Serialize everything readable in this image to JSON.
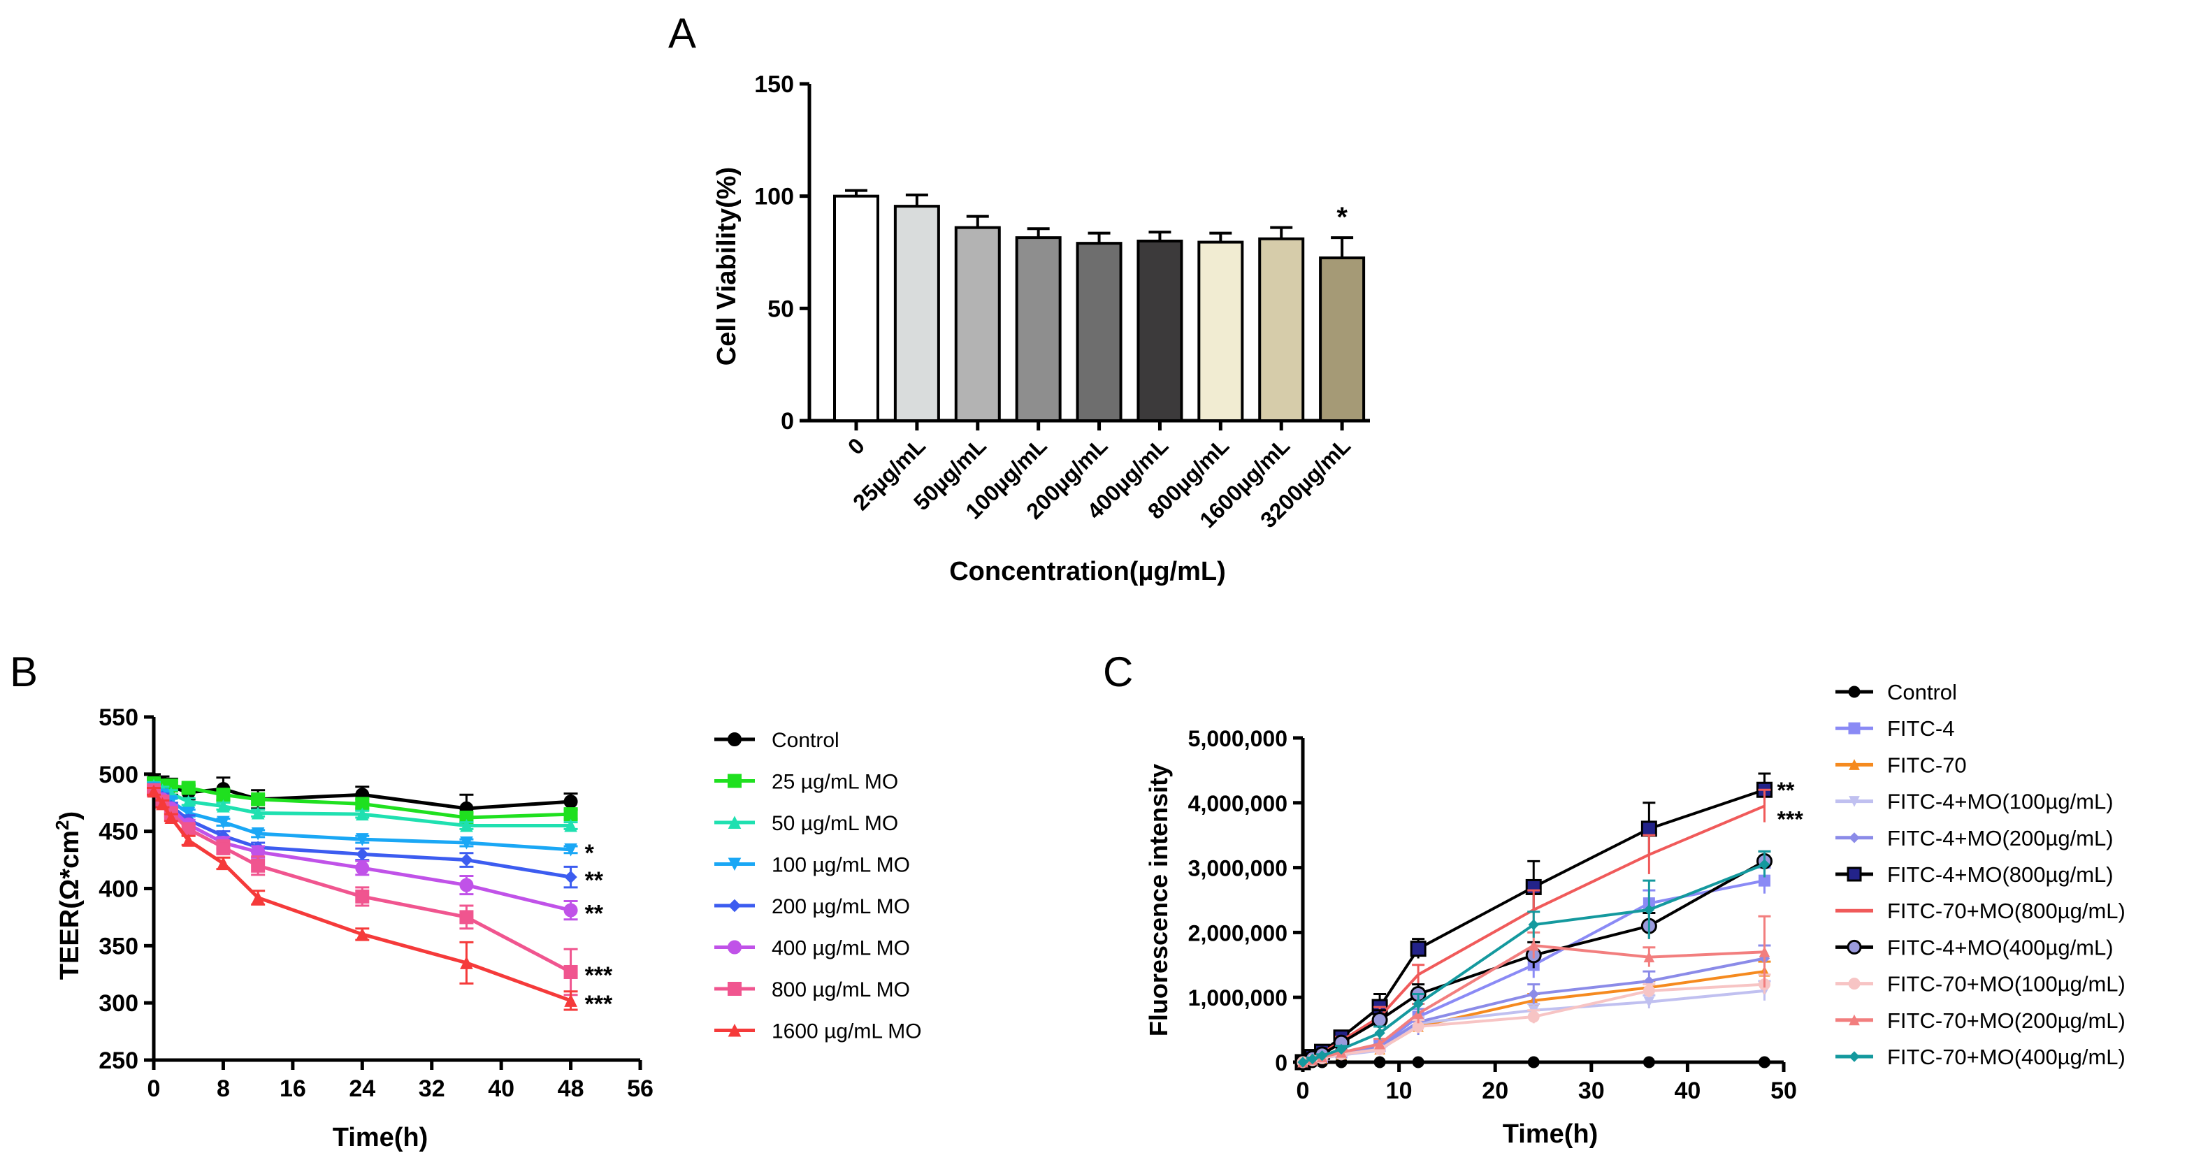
{
  "chart_data": [
    {
      "panel": "A",
      "type": "bar",
      "title": "",
      "xlabel": "Concentration(µg/mL)",
      "ylabel": "Cell Viability(%)",
      "ylim": [
        0,
        150
      ],
      "yticks": [
        0,
        50,
        100,
        150
      ],
      "categories": [
        "0",
        "25µg/mL",
        "50µg/mL",
        "100µg/mL",
        "200µg/mL",
        "400µg/mL",
        "800µg/mL",
        "1600µg/mL",
        "3200µg/mL"
      ],
      "values": [
        100,
        95.5,
        86,
        81.5,
        79,
        80,
        79.5,
        81,
        72.5
      ],
      "errors": [
        2.5,
        5,
        5,
        4,
        4.5,
        4,
        4,
        5,
        9
      ],
      "colors": [
        "#ffffff",
        "#d9dcdc",
        "#b3b3b3",
        "#8e8e8e",
        "#6e6e6e",
        "#3c3a3b",
        "#f1ecd2",
        "#d6ccaa",
        "#a59a76"
      ],
      "annotations": [
        {
          "category": "3200µg/mL",
          "text": "*"
        }
      ]
    },
    {
      "panel": "B",
      "type": "line",
      "xlabel": "Time(h)",
      "ylabel_main": "TEER(Ω*cm",
      "ylabel_sup": "2",
      "ylabel_end": ")",
      "xlim": [
        0,
        56
      ],
      "ylim": [
        250,
        550
      ],
      "xticks": [
        0,
        8,
        16,
        24,
        32,
        40,
        48,
        56
      ],
      "yticks": [
        250,
        300,
        350,
        400,
        450,
        500,
        550
      ],
      "x": [
        0,
        1,
        2,
        4,
        8,
        12,
        24,
        36,
        48
      ],
      "series": [
        {
          "name": "Control",
          "color": "#000000",
          "marker": "circle",
          "values": [
            495,
            492,
            489,
            484,
            487,
            478,
            482,
            470,
            476
          ],
          "errors": [
            5,
            6,
            7,
            6,
            10,
            8,
            7,
            12,
            7
          ]
        },
        {
          "name": "25 µg/mL MO",
          "color": "#1fe01f",
          "marker": "square",
          "values": [
            492,
            490,
            490,
            488,
            482,
            478,
            474,
            462,
            465
          ],
          "errors": [
            3,
            3,
            3,
            3,
            4,
            4,
            4,
            4,
            4
          ]
        },
        {
          "name": "50 µg/mL MO",
          "color": "#1fe0b0",
          "marker": "triangle-up",
          "values": [
            490,
            486,
            483,
            476,
            472,
            466,
            465,
            455,
            455
          ],
          "errors": [
            3,
            3,
            3,
            3,
            3,
            3,
            3,
            3,
            3
          ]
        },
        {
          "name": "100 µg/mL MO",
          "color": "#1aa7f5",
          "marker": "triangle-down",
          "values": [
            488,
            482,
            476,
            466,
            458,
            448,
            443,
            440,
            434
          ],
          "errors": [
            3,
            3,
            3,
            3,
            3,
            3,
            3,
            3,
            3
          ]
        },
        {
          "name": "200 µg/mL MO",
          "color": "#3c5cf0",
          "marker": "diamond",
          "values": [
            487,
            480,
            472,
            460,
            446,
            436,
            430,
            425,
            410
          ],
          "errors": [
            3,
            3,
            3,
            4,
            4,
            4,
            5,
            6,
            9
          ]
        },
        {
          "name": "400 µg/mL MO",
          "color": "#c052e8",
          "marker": "circle",
          "values": [
            486,
            478,
            470,
            456,
            440,
            432,
            418,
            403,
            381
          ],
          "errors": [
            3,
            3,
            3,
            4,
            5,
            5,
            6,
            8,
            8
          ]
        },
        {
          "name": "800 µg/mL MO",
          "color": "#f0558f",
          "marker": "square",
          "values": [
            486,
            476,
            466,
            452,
            436,
            420,
            393,
            375,
            327
          ],
          "errors": [
            3,
            3,
            3,
            4,
            6,
            8,
            8,
            10,
            20
          ]
        },
        {
          "name": "1600 µg/mL MO",
          "color": "#f53a3a",
          "marker": "triangle-up",
          "values": [
            485,
            474,
            462,
            442,
            422,
            392,
            360,
            335,
            302
          ],
          "errors": [
            3,
            3,
            3,
            4,
            5,
            6,
            5,
            18,
            8
          ]
        }
      ],
      "annotations": [
        {
          "series": "100 µg/mL MO",
          "text": "*"
        },
        {
          "series": "200 µg/mL MO",
          "text": "**"
        },
        {
          "series": "400 µg/mL MO",
          "text": "**"
        },
        {
          "series": "800 µg/mL MO",
          "text": "***"
        },
        {
          "series": "1600 µg/mL MO",
          "text": "***"
        }
      ]
    },
    {
      "panel": "C",
      "type": "line",
      "xlabel": "Time(h)",
      "ylabel": "Fluorescence intensity",
      "xlim": [
        0,
        50
      ],
      "ylim": [
        0,
        5000000
      ],
      "xticks": [
        0,
        10,
        20,
        30,
        40,
        50
      ],
      "yticks": [
        0,
        1000000,
        2000000,
        3000000,
        4000000,
        5000000
      ],
      "ytick_labels": [
        "0",
        "1,000,000",
        "2,000,000",
        "3,000,000",
        "4,000,000",
        "5,000,000"
      ],
      "x": [
        0,
        1,
        2,
        4,
        8,
        12,
        24,
        36,
        48
      ],
      "series": [
        {
          "name": "Control",
          "color": "#000000",
          "marker": "circle",
          "values": [
            0,
            0,
            0,
            0,
            0,
            0,
            0,
            0,
            0
          ],
          "errors": [
            0,
            0,
            0,
            0,
            0,
            0,
            0,
            0,
            0
          ]
        },
        {
          "name": "FITC-4",
          "color": "#8a8af5",
          "marker": "square",
          "values": [
            0,
            40000,
            80000,
            150000,
            250000,
            700000,
            1500000,
            2450000,
            2800000
          ],
          "errors": [
            0,
            20000,
            20000,
            40000,
            80000,
            200000,
            200000,
            200000,
            200000
          ]
        },
        {
          "name": "FITC-70",
          "color": "#f58a1f",
          "marker": "triangle-up",
          "values": [
            0,
            30000,
            60000,
            120000,
            200000,
            550000,
            950000,
            1150000,
            1400000
          ],
          "errors": [
            0,
            20000,
            20000,
            30000,
            50000,
            100000,
            100000,
            100000,
            150000
          ]
        },
        {
          "name": "FITC-4+MO(100µg/mL)",
          "color": "#c0c0f0",
          "marker": "triangle-down",
          "values": [
            0,
            30000,
            60000,
            110000,
            180000,
            600000,
            800000,
            930000,
            1100000
          ],
          "errors": [
            0,
            20000,
            20000,
            30000,
            50000,
            100000,
            100000,
            100000,
            150000
          ]
        },
        {
          "name": "FITC-4+MO(200µg/mL)",
          "color": "#8b8be8",
          "marker": "diamond",
          "values": [
            0,
            40000,
            80000,
            140000,
            230000,
            620000,
            1050000,
            1250000,
            1600000
          ],
          "errors": [
            0,
            20000,
            20000,
            40000,
            60000,
            200000,
            150000,
            150000,
            200000
          ]
        },
        {
          "name": "FITC-4+MO(800µg/mL)",
          "color": "#000000",
          "fill": "#23238a",
          "marker": "square",
          "values": [
            0,
            80000,
            160000,
            380000,
            850000,
            1750000,
            2700000,
            3600000,
            4200000
          ],
          "errors": [
            0,
            30000,
            30000,
            60000,
            200000,
            150000,
            400000,
            400000,
            250000
          ]
        },
        {
          "name": "FITC-70+MO(800µg/mL)",
          "color": "#f05a5a",
          "marker": "line",
          "values": [
            0,
            70000,
            140000,
            330000,
            700000,
            1350000,
            2350000,
            3200000,
            3950000
          ],
          "errors": [
            0,
            30000,
            30000,
            60000,
            150000,
            150000,
            300000,
            300000,
            250000
          ]
        },
        {
          "name": "FITC-4+MO(400µg/mL)",
          "color": "#000000",
          "fill": "#9a9adc",
          "marker": "circle",
          "values": [
            0,
            60000,
            120000,
            300000,
            650000,
            1050000,
            1650000,
            2100000,
            3100000
          ],
          "errors": [
            0,
            30000,
            30000,
            50000,
            150000,
            150000,
            200000,
            200000,
            150000
          ]
        },
        {
          "name": "FITC-70+MO(100µg/mL)",
          "color": "#f7c4c4",
          "marker": "circle",
          "values": [
            0,
            30000,
            60000,
            120000,
            200000,
            550000,
            700000,
            1100000,
            1200000
          ],
          "errors": [
            0,
            20000,
            20000,
            30000,
            50000,
            100000,
            100000,
            100000,
            150000
          ]
        },
        {
          "name": "FITC-70+MO(200µg/mL)",
          "color": "#f27e7e",
          "marker": "triangle-up",
          "values": [
            0,
            40000,
            80000,
            150000,
            280000,
            750000,
            1800000,
            1620000,
            1700000
          ],
          "errors": [
            0,
            20000,
            20000,
            40000,
            80000,
            150000,
            200000,
            150000,
            550000
          ]
        },
        {
          "name": "FITC-70+MO(400µg/mL)",
          "color": "#14999e",
          "marker": "diamond",
          "values": [
            0,
            50000,
            100000,
            200000,
            450000,
            900000,
            2120000,
            2350000,
            3050000
          ],
          "errors": [
            0,
            20000,
            20000,
            50000,
            100000,
            150000,
            200000,
            450000,
            200000
          ]
        }
      ],
      "annotations": [
        {
          "series": "FITC-4+MO(800µg/mL)",
          "text": "**"
        },
        {
          "series": "FITC-70+MO(800µg/mL)",
          "text": "***"
        }
      ]
    }
  ]
}
